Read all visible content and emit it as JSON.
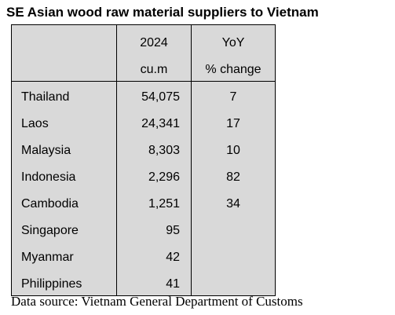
{
  "header": {
    "title": "SE Asian wood raw material suppliers to Vietnam"
  },
  "table": {
    "header": {
      "volume": [
        "2024",
        "cu.m"
      ],
      "change": [
        "YoY",
        "% change"
      ]
    },
    "rows": [
      [
        "Thailand",
        "54,075",
        "7"
      ],
      [
        "Laos",
        "24,341",
        "17"
      ],
      [
        "Malaysia",
        "8,303",
        "10"
      ],
      [
        "Indonesia",
        "2,296",
        "82"
      ],
      [
        "Cambodia",
        "1,251",
        "34"
      ],
      [
        "Singapore",
        "95"
      ],
      [
        "Myanmar",
        "42"
      ],
      [
        "Philippines",
        "41"
      ]
    ]
  },
  "footer": {
    "source": "Data source: Vietnam General Department of Customs"
  }
}
